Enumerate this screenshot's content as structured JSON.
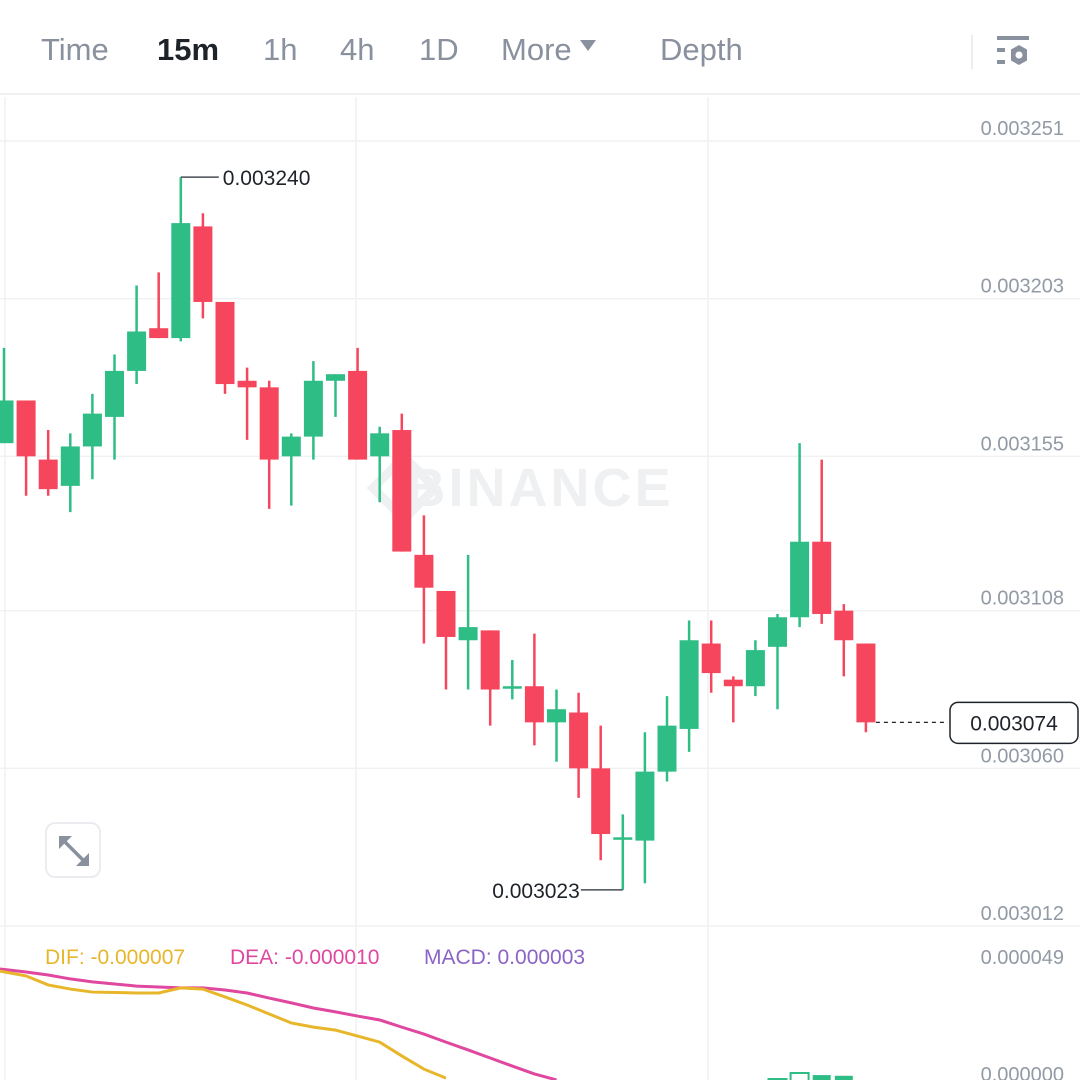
{
  "header": {
    "tabs": [
      {
        "label": "Time",
        "active": false
      },
      {
        "label": "15m",
        "active": true
      },
      {
        "label": "1h",
        "active": false
      },
      {
        "label": "4h",
        "active": false
      },
      {
        "label": "1D",
        "active": false
      },
      {
        "label": "More",
        "active": false
      },
      {
        "label": "Depth",
        "active": false
      }
    ],
    "settings_icon": "chart-settings-icon"
  },
  "watermark": "BINANCE",
  "expand_icon": "expand-arrows-icon",
  "colors": {
    "up": "#2ebd85",
    "down": "#f6465d",
    "dif": "#e8b62a",
    "dea": "#e0479e",
    "macd": "#8c63c6",
    "axis_text": "#929aa5",
    "grid": "#f0f1f3"
  },
  "chart_data": {
    "type": "candlestick",
    "interval": "15m",
    "price_axis": {
      "ticks": [
        "0.003251",
        "0.003203",
        "0.003155",
        "0.003108",
        "0.003060",
        "0.003012"
      ],
      "ylim": [
        0.003012,
        0.003251
      ]
    },
    "high_marker": "0.003240",
    "low_marker": "0.003023",
    "last_price": "0.003074",
    "grid": true,
    "candles": [
      [
        0.003159,
        0.003188,
        0.003159,
        0.003172
      ],
      [
        0.003172,
        0.003172,
        0.003143,
        0.003155
      ],
      [
        0.003154,
        0.003163,
        0.003143,
        0.003145
      ],
      [
        0.003146,
        0.003162,
        0.003138,
        0.003158
      ],
      [
        0.003158,
        0.003174,
        0.003148,
        0.003168
      ],
      [
        0.003167,
        0.003186,
        0.003154,
        0.003181
      ],
      [
        0.003181,
        0.003207,
        0.003177,
        0.003193
      ],
      [
        0.003194,
        0.003211,
        0.003191,
        0.003191
      ],
      [
        0.003191,
        0.00324,
        0.00319,
        0.003226
      ],
      [
        0.003225,
        0.003229,
        0.003197,
        0.003202
      ],
      [
        0.003202,
        0.003202,
        0.003174,
        0.003177
      ],
      [
        0.003178,
        0.003182,
        0.00316,
        0.003176
      ],
      [
        0.003176,
        0.003178,
        0.003139,
        0.003154
      ],
      [
        0.003155,
        0.003162,
        0.00314,
        0.003161
      ],
      [
        0.003161,
        0.003184,
        0.003154,
        0.003178
      ],
      [
        0.003178,
        0.00318,
        0.003167,
        0.00318
      ],
      [
        0.003181,
        0.003188,
        0.003154,
        0.003154
      ],
      [
        0.003155,
        0.003164,
        0.003141,
        0.003162
      ],
      [
        0.003163,
        0.003168,
        0.003126,
        0.003126
      ],
      [
        0.003125,
        0.003137,
        0.003098,
        0.003115
      ],
      [
        0.003114,
        0.003114,
        0.003084,
        0.0031
      ],
      [
        0.003099,
        0.003125,
        0.003084,
        0.003103
      ],
      [
        0.003102,
        0.003102,
        0.003073,
        0.003084
      ],
      [
        0.003085,
        0.003093,
        0.003081,
        0.003085
      ],
      [
        0.003085,
        0.003101,
        0.003067,
        0.003074
      ],
      [
        0.003074,
        0.003084,
        0.003062,
        0.003078
      ],
      [
        0.003077,
        0.003083,
        0.003051,
        0.00306
      ],
      [
        0.00306,
        0.003073,
        0.003032,
        0.00304
      ],
      [
        0.003039,
        0.003046,
        0.003023,
        0.003039
      ],
      [
        0.003038,
        0.003071,
        0.003025,
        0.003059
      ],
      [
        0.003059,
        0.003082,
        0.003056,
        0.003073
      ],
      [
        0.003072,
        0.003105,
        0.003065,
        0.003099
      ],
      [
        0.003098,
        0.003105,
        0.003083,
        0.003089
      ],
      [
        0.003087,
        0.003088,
        0.003074,
        0.003085
      ],
      [
        0.003085,
        0.003099,
        0.003082,
        0.003096
      ],
      [
        0.003097,
        0.003107,
        0.003078,
        0.003106
      ],
      [
        0.003106,
        0.003159,
        0.003103,
        0.003129
      ],
      [
        0.003129,
        0.003154,
        0.003104,
        0.003107
      ],
      [
        0.003108,
        0.00311,
        0.003088,
        0.003099
      ],
      [
        0.003098,
        0.003098,
        0.003071,
        0.003074
      ]
    ],
    "macd": {
      "labels": {
        "dif": "DIF: -0.000007",
        "dea": "DEA: -0.000010",
        "macd": "MACD: 0.000003"
      },
      "axis_ticks": [
        "0.000049",
        "0.000000"
      ],
      "dif": [
        4.94e-05,
        4.73e-05,
        4.34e-05,
        4.16e-05,
        4.03e-05,
        4.01e-05,
        3.99e-05,
        3.99e-05,
        4.21e-05,
        4.16e-05,
        3.82e-05,
        3.47e-05,
        3.08e-05,
        2.69e-05,
        2.51e-05,
        2.38e-05,
        2.12e-05,
        1.86e-05,
        1.26e-05,
        6.9e-06,
        3e-06
      ],
      "dea": [
        5.03e-05,
        4.9e-05,
        4.77e-05,
        4.6e-05,
        4.47e-05,
        4.38e-05,
        4.29e-05,
        4.25e-05,
        4.21e-05,
        4.21e-05,
        4.12e-05,
        3.99e-05,
        3.77e-05,
        3.56e-05,
        3.34e-05,
        3.17e-05,
        2.99e-05,
        2.82e-05,
        2.51e-05,
        2.21e-05,
        1.86e-05,
        1.52e-05,
        1.17e-05,
        8.2e-06,
        4.8e-06,
        2.2e-06
      ],
      "histogram_visible": [
        {
          "index": 35,
          "value": 2.6e-06,
          "hollow": true
        },
        {
          "index": 36,
          "value": 5.2e-06,
          "hollow": true
        },
        {
          "index": 37,
          "value": 4.3e-06,
          "hollow": false
        },
        {
          "index": 38,
          "value": 4e-06,
          "hollow": false
        }
      ]
    }
  }
}
